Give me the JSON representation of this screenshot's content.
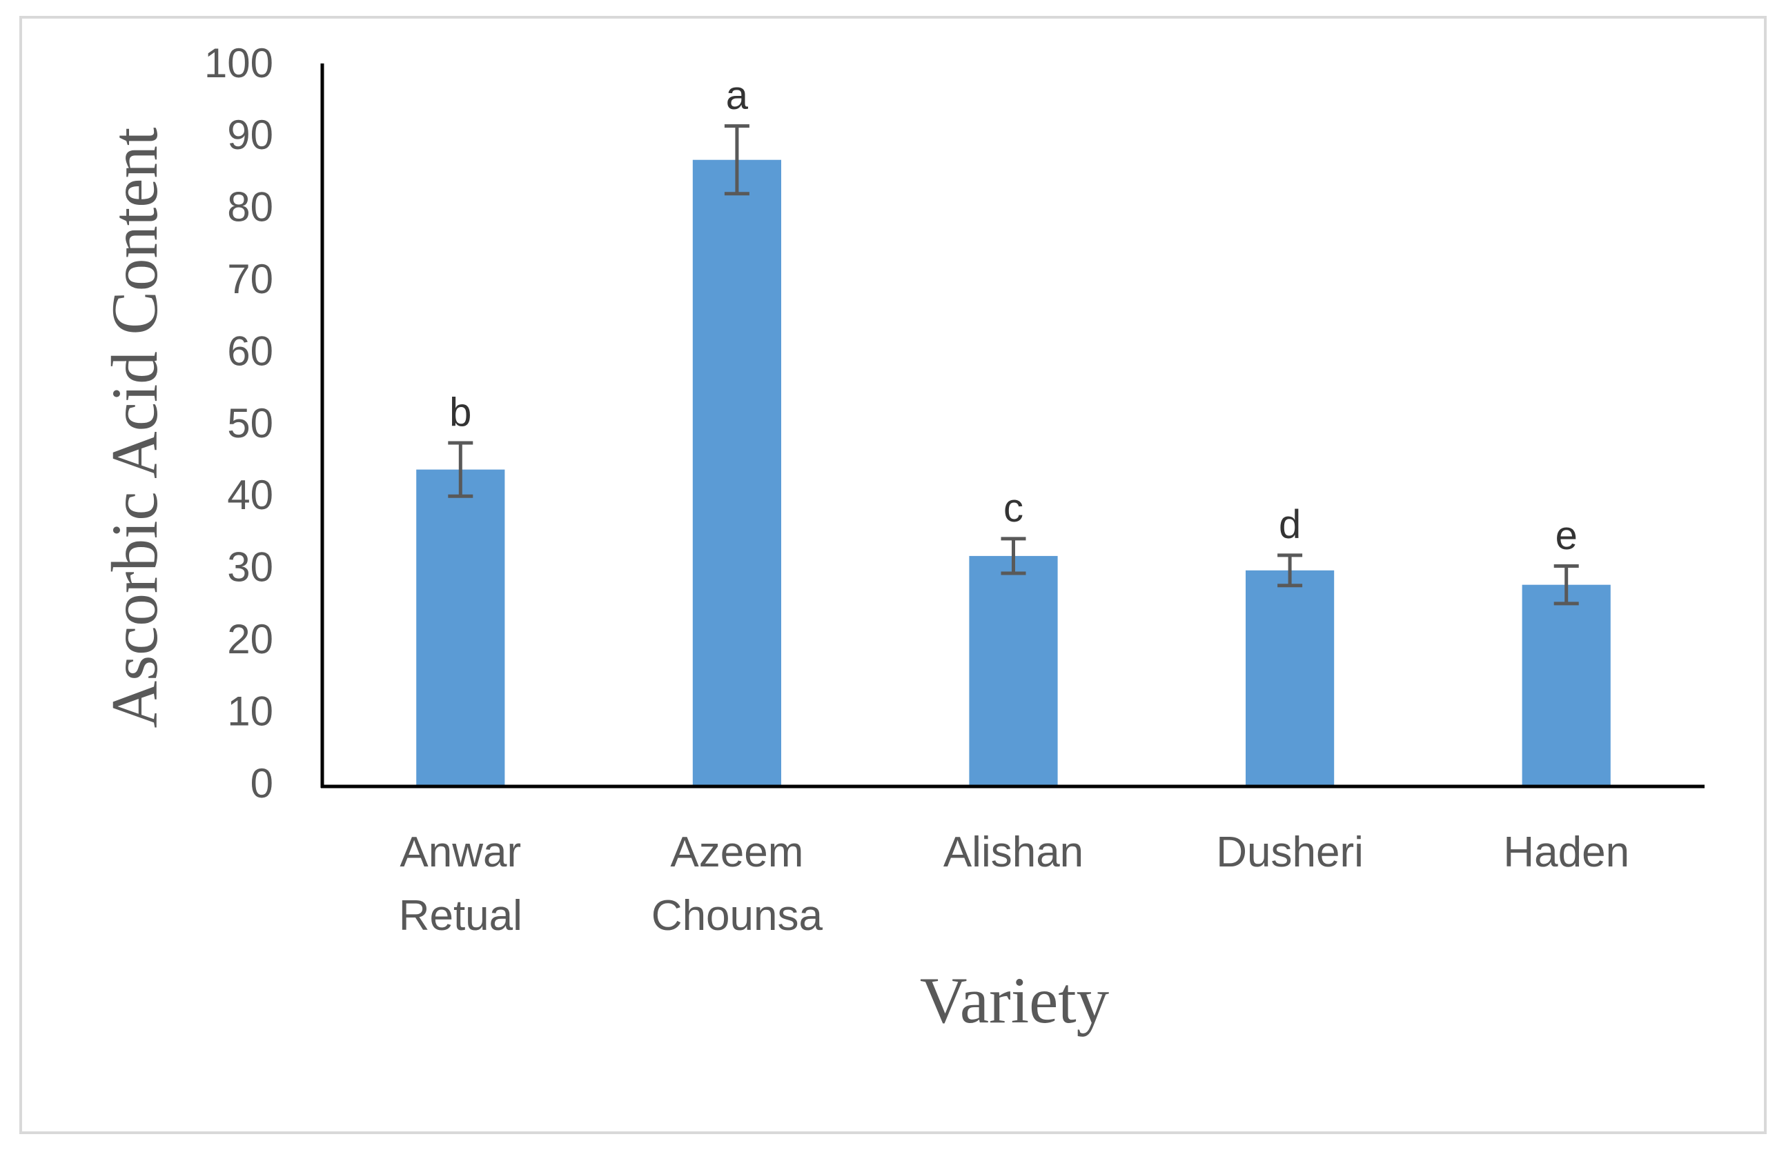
{
  "chart_data": {
    "type": "bar",
    "x_label": "Variety",
    "y_label": "Ascorbic Acid Content",
    "categories": [
      "Anwar Retual",
      "Azeem Chounsa",
      "Alishan",
      "Dusheri",
      "Haden"
    ],
    "values": [
      44,
      87,
      32,
      30,
      28
    ],
    "errors": [
      3.7,
      4.7,
      2.4,
      2.1,
      2.6
    ],
    "annotations": [
      "b",
      "a",
      "c",
      "d",
      "e"
    ],
    "color": "#5b9bd5",
    "error_color": "#595959",
    "ylim": [
      0,
      100
    ],
    "yticks": [
      0,
      10,
      20,
      30,
      40,
      50,
      60,
      70,
      80,
      90,
      100
    ],
    "grid": false
  }
}
